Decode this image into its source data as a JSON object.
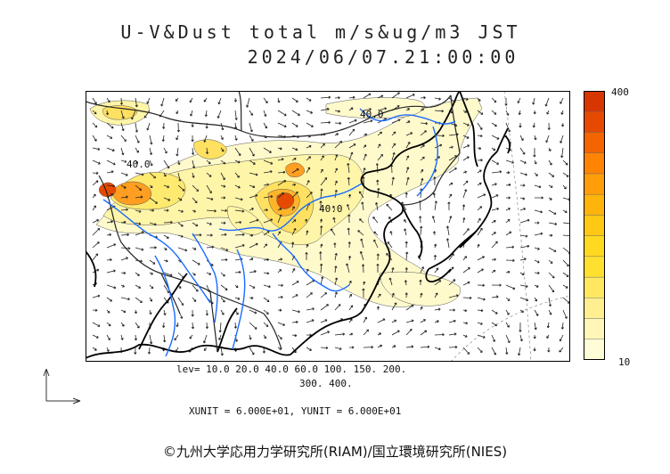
{
  "header": {
    "title": "U-V&Dust total m/s&ug/m3 JST",
    "datetime": "2024/06/07.21:00:00"
  },
  "colorbar": {
    "max_label": "400",
    "min_label": "10",
    "colors": [
      "#fffcd8",
      "#fff6b8",
      "#ffef90",
      "#ffe860",
      "#ffe030",
      "#ffd820",
      "#ffc814",
      "#ffb40c",
      "#ff9e08",
      "#ff8404",
      "#f46400",
      "#e64a00",
      "#d83600"
    ]
  },
  "contour_labels": [
    "40.0",
    "40.0",
    "40.0"
  ],
  "legend": {
    "levels_line1": "lev= 10.0 20.0 40.0 60.0 100. 150. 200.",
    "levels_line2": "300. 400."
  },
  "units": "XUNIT = 6.000E+01, YUNIT = 6.000E+01",
  "copyright": "©九州大学応用力学研究所(RIAM)/国立環境研究所(NIES)",
  "colors": {
    "coast": "#000000",
    "river": "#1a6cff",
    "border": "#333333"
  }
}
